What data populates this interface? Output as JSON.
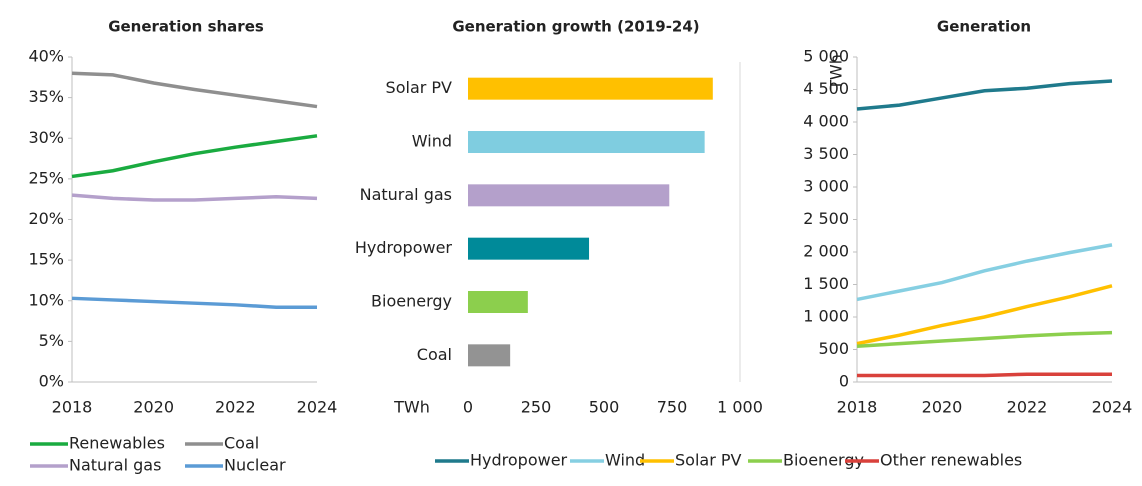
{
  "chart_data": [
    {
      "type": "line",
      "title": "Generation shares",
      "x": [
        2018,
        2019,
        2020,
        2021,
        2022,
        2023,
        2024
      ],
      "xlim": [
        2018,
        2024
      ],
      "xticks": [
        2018,
        2020,
        2022,
        2024
      ],
      "ylim": [
        0,
        40
      ],
      "yticks": [
        {
          "value": 0,
          "label": "0%"
        },
        {
          "value": 5,
          "label": "5%"
        },
        {
          "value": 10,
          "label": "10%"
        },
        {
          "value": 15,
          "label": "15%"
        },
        {
          "value": 20,
          "label": "20%"
        },
        {
          "value": 25,
          "label": "25%"
        },
        {
          "value": 30,
          "label": "30%"
        },
        {
          "value": 35,
          "label": "35%"
        },
        {
          "value": 40,
          "label": "40%"
        }
      ],
      "series": [
        {
          "name": "Renewables",
          "color": "#1aab40",
          "values": [
            25.3,
            26,
            27.1,
            28.1,
            28.9,
            29.6,
            30.3
          ]
        },
        {
          "name": "Coal",
          "color": "#8f8f8f",
          "values": [
            38,
            37.8,
            36.8,
            36,
            35.3,
            34.6,
            33.9
          ]
        },
        {
          "name": "Natural gas",
          "color": "#b4a0cb",
          "values": [
            23,
            22.6,
            22.4,
            22.4,
            22.6,
            22.8,
            22.6
          ]
        },
        {
          "name": "Nuclear",
          "color": "#5b9bd5",
          "values": [
            10.3,
            10.1,
            9.9,
            9.7,
            9.5,
            9.2,
            9.2
          ]
        }
      ]
    },
    {
      "type": "hbar",
      "title": "Generation growth (2019-24)",
      "xlabel": "TWh",
      "categories": [
        "Solar PV",
        "Wind",
        "Natural gas",
        "Hydropower",
        "Bioenergy",
        "Coal"
      ],
      "values": [
        900,
        870,
        740,
        445,
        220,
        155
      ],
      "colors": [
        "#ffc000",
        "#7fcde0",
        "#b4a0cb",
        "#008a99",
        "#8ccf4d",
        "#939393"
      ],
      "xlim": [
        0,
        1000
      ],
      "xticks": [
        0,
        250,
        500,
        750,
        {
          "value": 1000,
          "label": "1 000"
        }
      ]
    },
    {
      "type": "line",
      "title": "Generation",
      "ylabel": "TWh",
      "x": [
        2018,
        2019,
        2020,
        2021,
        2022,
        2023,
        2024
      ],
      "xlim": [
        2018,
        2024
      ],
      "xticks": [
        2018,
        2020,
        2022,
        2024
      ],
      "ylim": [
        0,
        5000
      ],
      "yticks": [
        0,
        500,
        {
          "value": 1000,
          "label": "1 000"
        },
        {
          "value": 1500,
          "label": "1 500"
        },
        {
          "value": 2000,
          "label": "2 000"
        },
        {
          "value": 2500,
          "label": "2 500"
        },
        {
          "value": 3000,
          "label": "3 000"
        },
        {
          "value": 3500,
          "label": "3 500"
        },
        {
          "value": 4000,
          "label": "4 000"
        },
        {
          "value": 4500,
          "label": "4 500"
        },
        {
          "value": 5000,
          "label": "5 000"
        }
      ],
      "series": [
        {
          "name": "Hydropower",
          "color": "#1f7a8c",
          "values": [
            4200,
            4260,
            4370,
            4480,
            4520,
            4590,
            4630
          ]
        },
        {
          "name": "Wind",
          "color": "#86cfe2",
          "values": [
            1270,
            1400,
            1530,
            1710,
            1860,
            1990,
            2110
          ]
        },
        {
          "name": "Solar PV",
          "color": "#ffc000",
          "values": [
            590,
            720,
            870,
            1000,
            1160,
            1310,
            1480
          ]
        },
        {
          "name": "Bioenergy",
          "color": "#8ccf4d",
          "values": [
            550,
            590,
            630,
            670,
            710,
            740,
            760
          ]
        },
        {
          "name": "Other renewables",
          "color": "#d9413b",
          "values": [
            100,
            100,
            100,
            100,
            120,
            120,
            120
          ]
        }
      ]
    }
  ]
}
